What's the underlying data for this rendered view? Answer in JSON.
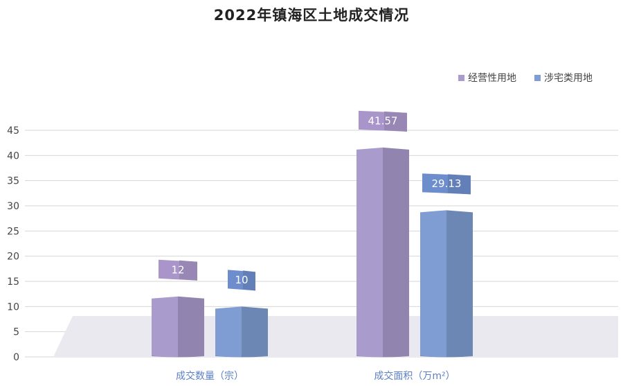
{
  "chart_data": {
    "type": "bar",
    "title": "2022年镇海区土地成交情况",
    "categories": [
      "成交数量（宗）",
      "成交面积（万m²）"
    ],
    "series": [
      {
        "name": "经营性用地",
        "values": [
          12,
          41.57
        ],
        "color": "#A99BCB",
        "label_color": "#A995C9"
      },
      {
        "name": "涉宅类用地",
        "values": [
          10,
          29.13
        ],
        "color": "#7F9DD3",
        "label_color": "#6E8DCC"
      }
    ],
    "ylim": [
      0,
      45
    ],
    "yticks": [
      0,
      5,
      10,
      15,
      20,
      25,
      30,
      35,
      40,
      45
    ],
    "grid": true,
    "legend_position": "top-right",
    "value_label_text_color": "#ffffff",
    "axis_label_color": "#5B7FC4"
  }
}
